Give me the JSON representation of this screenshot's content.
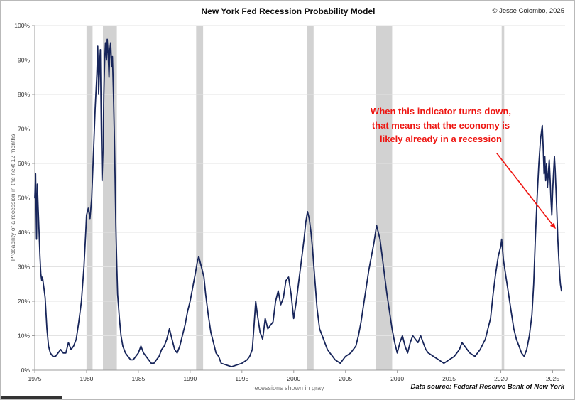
{
  "header": {
    "copyright": "© Jesse Colombo, 2025"
  },
  "chart_data": {
    "type": "line",
    "title": "New York Fed Recession Probability Model",
    "ylabel": "Probability of a recession in the next 12 months",
    "xlabel": "",
    "footnote": "recessions shown in gray",
    "source": "Data source: Federal Reserve Bank of New York",
    "xlim": [
      1975,
      2026.2
    ],
    "ylim": [
      0,
      100
    ],
    "grid_on": true,
    "legend": "none",
    "line_color": "#17255a",
    "recession_band_color": "#d2d2d2",
    "grid_color": "#e3e3e3",
    "axis_color": "#9e9e9e",
    "x_tick_values": [
      1975,
      1980,
      1985,
      1990,
      1995,
      2000,
      2005,
      2010,
      2015,
      2020,
      2025
    ],
    "x_tick_labels": [
      "1975",
      "1980",
      "1985",
      "1990",
      "1995",
      "2000",
      "2005",
      "2010",
      "2015",
      "2020",
      "2025"
    ],
    "y_tick_values": [
      0,
      10,
      20,
      30,
      40,
      50,
      60,
      70,
      80,
      90,
      100
    ],
    "y_tick_labels": [
      "0%",
      "10%",
      "20%",
      "30%",
      "40%",
      "50%",
      "60%",
      "70%",
      "80%",
      "90%",
      "100%"
    ],
    "recession_bands": [
      [
        1980.0,
        1980.58
      ],
      [
        1981.58,
        1982.92
      ],
      [
        1990.58,
        1991.25
      ],
      [
        2001.25,
        2001.92
      ],
      [
        2007.92,
        2009.5
      ],
      [
        2020.08,
        2020.33
      ]
    ],
    "annotation": {
      "line1": "When this indicator turns down,",
      "line2": "that means that the economy is",
      "line3": "likely already in a recession",
      "color": "#ee1511",
      "arrow_from": [
        2019.6,
        63
      ],
      "arrow_to": [
        2025.3,
        41
      ]
    },
    "series": [
      {
        "name": "Probability of a recession in the next 12 months",
        "points": [
          [
            1975.0,
            50
          ],
          [
            1975.08,
            57
          ],
          [
            1975.17,
            38
          ],
          [
            1975.25,
            54
          ],
          [
            1975.33,
            47
          ],
          [
            1975.42,
            40
          ],
          [
            1975.5,
            33
          ],
          [
            1975.58,
            28
          ],
          [
            1975.67,
            26
          ],
          [
            1975.75,
            27
          ],
          [
            1975.83,
            25
          ],
          [
            1975.92,
            23
          ],
          [
            1976.0,
            21
          ],
          [
            1976.17,
            12
          ],
          [
            1976.33,
            7
          ],
          [
            1976.5,
            5
          ],
          [
            1976.75,
            4
          ],
          [
            1977.0,
            4
          ],
          [
            1977.25,
            5
          ],
          [
            1977.5,
            6
          ],
          [
            1977.75,
            5
          ],
          [
            1978.0,
            5
          ],
          [
            1978.25,
            8
          ],
          [
            1978.5,
            6
          ],
          [
            1978.75,
            7
          ],
          [
            1979.0,
            9
          ],
          [
            1979.25,
            14
          ],
          [
            1979.5,
            20
          ],
          [
            1979.75,
            30
          ],
          [
            1979.92,
            40
          ],
          [
            1980.0,
            45
          ],
          [
            1980.17,
            47
          ],
          [
            1980.33,
            44
          ],
          [
            1980.5,
            50
          ],
          [
            1980.67,
            63
          ],
          [
            1980.83,
            76
          ],
          [
            1981.0,
            86
          ],
          [
            1981.08,
            94
          ],
          [
            1981.17,
            80
          ],
          [
            1981.25,
            88
          ],
          [
            1981.33,
            93
          ],
          [
            1981.42,
            70
          ],
          [
            1981.5,
            55
          ],
          [
            1981.58,
            63
          ],
          [
            1981.67,
            80
          ],
          [
            1981.75,
            90
          ],
          [
            1981.83,
            95
          ],
          [
            1981.92,
            90
          ],
          [
            1982.0,
            96
          ],
          [
            1982.08,
            92
          ],
          [
            1982.17,
            85
          ],
          [
            1982.25,
            93
          ],
          [
            1982.33,
            95
          ],
          [
            1982.42,
            88
          ],
          [
            1982.5,
            91
          ],
          [
            1982.58,
            82
          ],
          [
            1982.67,
            70
          ],
          [
            1982.75,
            56
          ],
          [
            1982.83,
            42
          ],
          [
            1982.92,
            30
          ],
          [
            1983.0,
            22
          ],
          [
            1983.17,
            15
          ],
          [
            1983.33,
            10
          ],
          [
            1983.5,
            7
          ],
          [
            1983.75,
            5
          ],
          [
            1984.0,
            4
          ],
          [
            1984.25,
            3
          ],
          [
            1984.5,
            3
          ],
          [
            1984.75,
            4
          ],
          [
            1985.0,
            5
          ],
          [
            1985.25,
            7
          ],
          [
            1985.5,
            5
          ],
          [
            1985.75,
            4
          ],
          [
            1986.0,
            3
          ],
          [
            1986.25,
            2
          ],
          [
            1986.5,
            2
          ],
          [
            1986.75,
            3
          ],
          [
            1987.0,
            4
          ],
          [
            1987.25,
            6
          ],
          [
            1987.5,
            7
          ],
          [
            1987.75,
            9
          ],
          [
            1988.0,
            12
          ],
          [
            1988.25,
            9
          ],
          [
            1988.5,
            6
          ],
          [
            1988.75,
            5
          ],
          [
            1989.0,
            7
          ],
          [
            1989.25,
            10
          ],
          [
            1989.5,
            13
          ],
          [
            1989.75,
            17
          ],
          [
            1990.0,
            20
          ],
          [
            1990.25,
            24
          ],
          [
            1990.5,
            28
          ],
          [
            1990.67,
            31
          ],
          [
            1990.83,
            33
          ],
          [
            1991.0,
            31
          ],
          [
            1991.17,
            29
          ],
          [
            1991.33,
            27
          ],
          [
            1991.5,
            22
          ],
          [
            1991.75,
            16
          ],
          [
            1992.0,
            11
          ],
          [
            1992.25,
            8
          ],
          [
            1992.5,
            5
          ],
          [
            1992.75,
            4
          ],
          [
            1993.0,
            2
          ],
          [
            1993.5,
            1.5
          ],
          [
            1994.0,
            1
          ],
          [
            1994.5,
            1.5
          ],
          [
            1995.0,
            2
          ],
          [
            1995.5,
            3
          ],
          [
            1995.75,
            4
          ],
          [
            1996.0,
            6
          ],
          [
            1996.17,
            13
          ],
          [
            1996.33,
            20
          ],
          [
            1996.5,
            16
          ],
          [
            1996.75,
            11
          ],
          [
            1997.0,
            9
          ],
          [
            1997.25,
            15
          ],
          [
            1997.5,
            12
          ],
          [
            1997.75,
            13
          ],
          [
            1998.0,
            14
          ],
          [
            1998.25,
            20
          ],
          [
            1998.5,
            23
          ],
          [
            1998.75,
            19
          ],
          [
            1999.0,
            21
          ],
          [
            1999.25,
            26
          ],
          [
            1999.5,
            27
          ],
          [
            1999.75,
            22
          ],
          [
            2000.0,
            15
          ],
          [
            2000.25,
            20
          ],
          [
            2000.5,
            26
          ],
          [
            2000.75,
            32
          ],
          [
            2001.0,
            38
          ],
          [
            2001.17,
            43
          ],
          [
            2001.33,
            46
          ],
          [
            2001.5,
            44
          ],
          [
            2001.67,
            40
          ],
          [
            2001.83,
            35
          ],
          [
            2002.0,
            28
          ],
          [
            2002.25,
            18
          ],
          [
            2002.5,
            12
          ],
          [
            2002.75,
            10
          ],
          [
            2003.0,
            8
          ],
          [
            2003.25,
            6
          ],
          [
            2003.5,
            5
          ],
          [
            2003.75,
            4
          ],
          [
            2004.0,
            3
          ],
          [
            2004.5,
            2
          ],
          [
            2004.75,
            3
          ],
          [
            2005.0,
            4
          ],
          [
            2005.5,
            5
          ],
          [
            2005.75,
            6
          ],
          [
            2006.0,
            7
          ],
          [
            2006.25,
            10
          ],
          [
            2006.5,
            14
          ],
          [
            2006.75,
            19
          ],
          [
            2007.0,
            24
          ],
          [
            2007.25,
            29
          ],
          [
            2007.5,
            33
          ],
          [
            2007.75,
            37
          ],
          [
            2008.0,
            42
          ],
          [
            2008.17,
            40
          ],
          [
            2008.33,
            38
          ],
          [
            2008.5,
            34
          ],
          [
            2008.75,
            28
          ],
          [
            2009.0,
            22
          ],
          [
            2009.25,
            17
          ],
          [
            2009.5,
            12
          ],
          [
            2009.75,
            8
          ],
          [
            2010.0,
            5
          ],
          [
            2010.25,
            8
          ],
          [
            2010.5,
            10
          ],
          [
            2010.75,
            7
          ],
          [
            2011.0,
            5
          ],
          [
            2011.25,
            8
          ],
          [
            2011.5,
            10
          ],
          [
            2011.75,
            9
          ],
          [
            2012.0,
            8
          ],
          [
            2012.25,
            10
          ],
          [
            2012.5,
            8
          ],
          [
            2012.75,
            6
          ],
          [
            2013.0,
            5
          ],
          [
            2013.5,
            4
          ],
          [
            2014.0,
            3
          ],
          [
            2014.5,
            2
          ],
          [
            2015.0,
            3
          ],
          [
            2015.5,
            4
          ],
          [
            2016.0,
            6
          ],
          [
            2016.25,
            8
          ],
          [
            2016.5,
            7
          ],
          [
            2016.75,
            6
          ],
          [
            2017.0,
            5
          ],
          [
            2017.5,
            4
          ],
          [
            2018.0,
            6
          ],
          [
            2018.5,
            9
          ],
          [
            2018.75,
            12
          ],
          [
            2019.0,
            15
          ],
          [
            2019.25,
            22
          ],
          [
            2019.5,
            28
          ],
          [
            2019.75,
            33
          ],
          [
            2020.0,
            36
          ],
          [
            2020.08,
            38
          ],
          [
            2020.25,
            32
          ],
          [
            2020.5,
            27
          ],
          [
            2020.75,
            22
          ],
          [
            2021.0,
            17
          ],
          [
            2021.25,
            12
          ],
          [
            2021.5,
            9
          ],
          [
            2021.75,
            7
          ],
          [
            2022.0,
            5
          ],
          [
            2022.25,
            4
          ],
          [
            2022.5,
            6
          ],
          [
            2022.75,
            10
          ],
          [
            2023.0,
            16
          ],
          [
            2023.17,
            25
          ],
          [
            2023.33,
            38
          ],
          [
            2023.5,
            50
          ],
          [
            2023.67,
            60
          ],
          [
            2023.83,
            67
          ],
          [
            2024.0,
            71
          ],
          [
            2024.08,
            65
          ],
          [
            2024.17,
            57
          ],
          [
            2024.25,
            62
          ],
          [
            2024.33,
            55
          ],
          [
            2024.42,
            60
          ],
          [
            2024.5,
            53
          ],
          [
            2024.58,
            57
          ],
          [
            2024.67,
            61
          ],
          [
            2024.75,
            56
          ],
          [
            2024.83,
            50
          ],
          [
            2024.92,
            45
          ],
          [
            2025.0,
            52
          ],
          [
            2025.08,
            57
          ],
          [
            2025.17,
            62
          ],
          [
            2025.25,
            58
          ],
          [
            2025.33,
            52
          ],
          [
            2025.42,
            45
          ],
          [
            2025.5,
            38
          ],
          [
            2025.58,
            33
          ],
          [
            2025.67,
            28
          ],
          [
            2025.75,
            25
          ],
          [
            2025.85,
            23
          ]
        ]
      }
    ]
  }
}
